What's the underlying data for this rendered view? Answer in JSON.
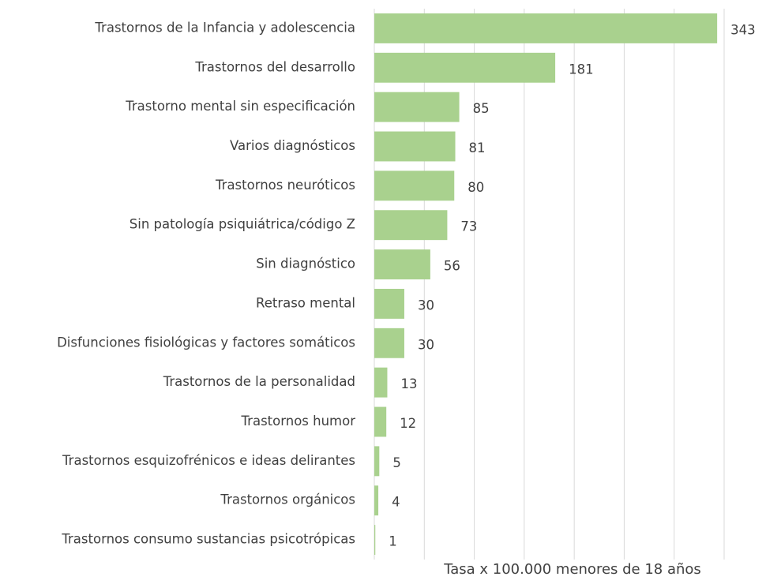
{
  "chart_data": {
    "type": "bar",
    "orientation": "horizontal",
    "categories": [
      "Trastornos de la Infancia y adolescencia",
      "Trastornos del desarrollo",
      "Trastorno mental sin especificación",
      "Varios diagnósticos",
      "Trastornos neuróticos",
      "Sin patología psiquiátrica/código Z",
      "Sin diagnóstico",
      "Retraso mental",
      "Disfunciones fisiológicas y factores somáticos",
      "Trastornos de la personalidad",
      "Trastornos humor",
      "Trastornos esquizofrénicos e ideas delirantes",
      "Trastornos orgánicos",
      "Trastornos consumo sustancias psicotrópicas"
    ],
    "values": [
      343,
      181,
      85,
      81,
      80,
      73,
      56,
      30,
      30,
      13,
      12,
      5,
      4,
      1
    ],
    "color": "#a9d18e",
    "x_label": "Tasa x 100.000 menores de 18 años",
    "xlim": [
      0,
      350
    ],
    "xticks": [
      0,
      50,
      100,
      150,
      200,
      250,
      300,
      350
    ],
    "grid": true
  }
}
